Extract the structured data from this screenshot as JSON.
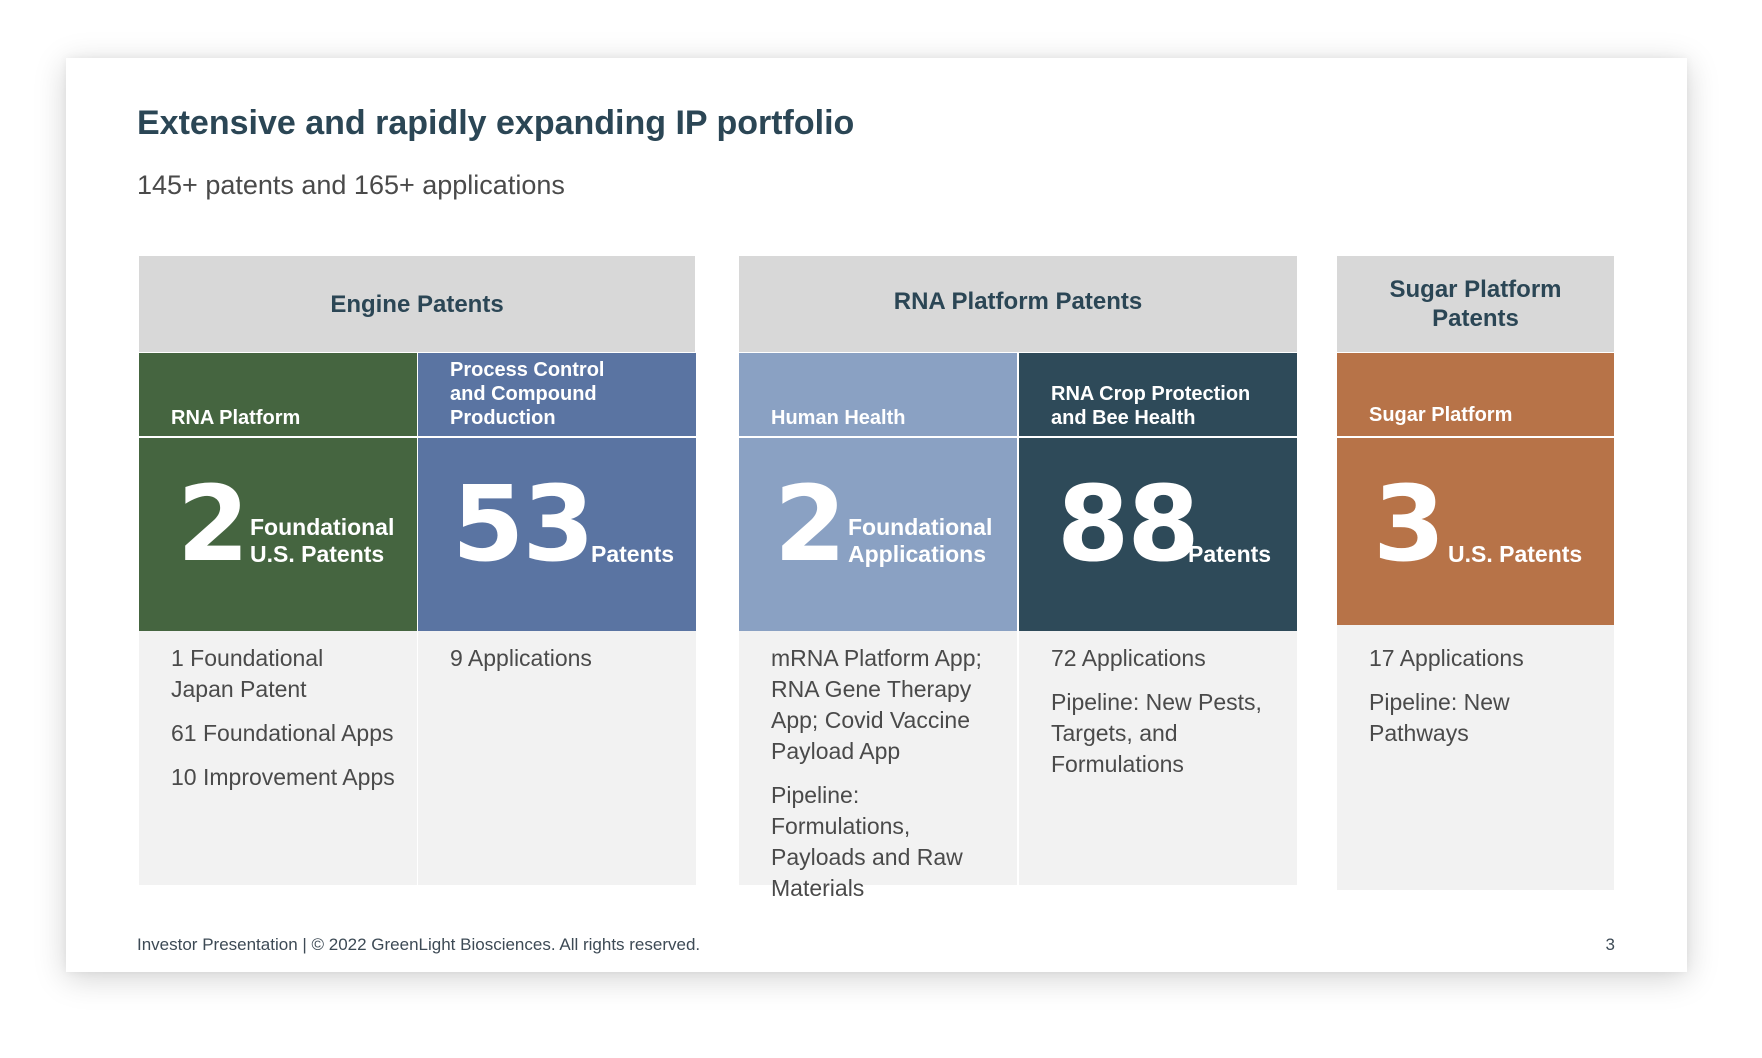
{
  "slide": {
    "title": "Extensive and rapidly expanding IP portfolio",
    "subtitle": "145+ patents and 165+ applications"
  },
  "groups": {
    "engine": "Engine Patents",
    "rna": "RNA Platform Patents",
    "sugar": "Sugar Platform Patents"
  },
  "columns": {
    "rna_platform": {
      "heading": "RNA Platform",
      "number": "2",
      "label_line1": "Foundational",
      "label_line2": "U.S. Patents",
      "notes": [
        "1 Foundational Japan Patent",
        "61 Foundational Apps",
        "10 Improvement Apps"
      ]
    },
    "process_control": {
      "heading": "Process Control and Compound Production",
      "number": "53",
      "label_line1": "Patents",
      "notes": [
        "9 Applications"
      ]
    },
    "human_health": {
      "heading": "Human Health",
      "number": "2",
      "label_line1": "Foundational",
      "label_line2": "Applications",
      "notes": [
        "mRNA Platform App; RNA Gene Therapy App; Covid Vaccine Payload App",
        "Pipeline: Formulations, Payloads and Raw Materials"
      ]
    },
    "crop_protection": {
      "heading": "RNA Crop Protection and Bee Health",
      "number": "88",
      "label_line1": "Patents",
      "notes": [
        "72 Applications",
        "Pipeline: New Pests, Targets, and Formulations"
      ]
    },
    "sugar_platform": {
      "heading": "Sugar Platform",
      "number": "3",
      "label_line1": "U.S. Patents",
      "notes": [
        "17 Applications",
        "Pipeline: New Pathways"
      ]
    }
  },
  "footer": {
    "text": "Investor Presentation | © 2022 GreenLight Biosciences. All rights reserved.",
    "page": "3"
  },
  "colors": {
    "title": "#2b4655",
    "rna_platform": "#456540",
    "process_control": "#5a74a2",
    "human_health": "#8aa1c3",
    "crop_protection": "#2e4a59",
    "sugar_platform": "#b77348",
    "header_gray": "#d8d8d8",
    "notes_bg": "#f2f2f2"
  }
}
